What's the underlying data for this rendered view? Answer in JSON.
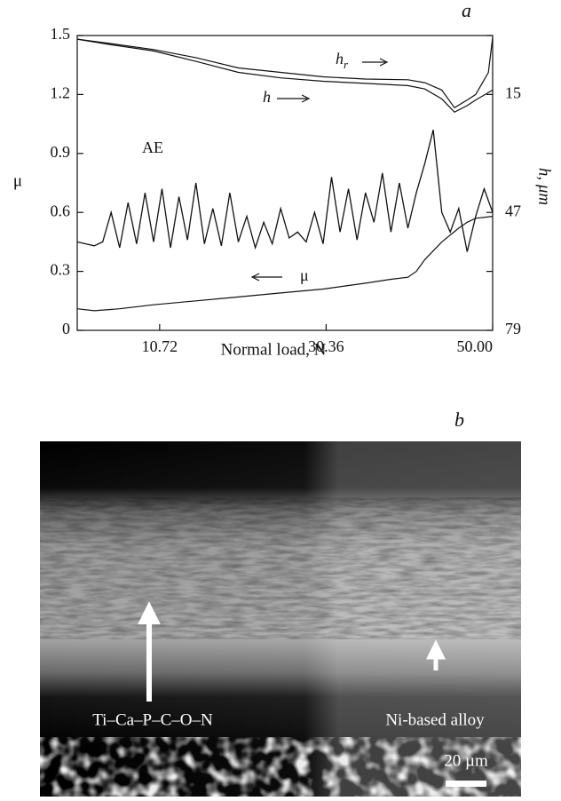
{
  "chart_data": {
    "type": "line",
    "panel_label": "a",
    "xlabel": "Normal load, N",
    "ylabel": "μ",
    "y2label": "h, μm",
    "xlim": [
      1,
      50
    ],
    "xticks": [
      10.72,
      30.36,
      {
        "value": 50,
        "label": "50.00"
      }
    ],
    "ylim": [
      0,
      1.5
    ],
    "yticks": [
      0,
      0.3,
      0.6,
      0.9,
      1.2,
      1.5
    ],
    "y2lim": [
      79,
      -1
    ],
    "y2ticks": [
      15,
      47,
      79
    ],
    "color": "#111111",
    "series": [
      {
        "name": "μ",
        "axis": "y",
        "x": [
          1,
          3,
          6,
          10,
          15,
          20,
          25,
          30,
          35,
          38,
          40,
          41,
          42,
          44,
          46,
          47,
          48,
          50
        ],
        "values": [
          0.11,
          0.1,
          0.11,
          0.13,
          0.15,
          0.17,
          0.19,
          0.21,
          0.24,
          0.26,
          0.27,
          0.3,
          0.36,
          0.45,
          0.52,
          0.55,
          0.57,
          0.58
        ]
      },
      {
        "name": "h",
        "axis": "y2",
        "x": [
          1,
          5,
          10,
          15,
          20,
          25,
          30,
          35,
          40,
          42,
          44,
          45.5,
          47,
          48,
          50
        ],
        "values": [
          0,
          1.5,
          3.2,
          6,
          9,
          10.5,
          11.4,
          12,
          12.6,
          13.5,
          16.2,
          19.8,
          18,
          16.5,
          13.8
        ]
      },
      {
        "name": "h",
        "name_sub": "r",
        "axis": "y2",
        "x": [
          1,
          5,
          10,
          15,
          20,
          25,
          30,
          35,
          40,
          42,
          44,
          45.5,
          47,
          48,
          49.5,
          50
        ],
        "values": [
          0,
          1.2,
          2.8,
          5,
          7.8,
          9,
          10.2,
          10.8,
          11,
          11.8,
          13.8,
          18.6,
          16.5,
          15,
          9,
          -0.5
        ]
      },
      {
        "name": "AE",
        "axis": "y",
        "x": [
          1,
          2,
          3,
          4,
          5,
          6,
          7,
          8,
          9,
          10,
          11,
          12,
          13,
          14,
          15,
          16,
          17,
          18,
          19,
          20,
          21,
          22,
          23,
          24,
          25,
          26,
          27,
          28,
          29,
          30,
          31,
          32,
          33,
          34,
          35,
          36,
          37,
          38,
          39,
          40,
          41,
          42,
          43,
          44,
          45,
          46,
          47,
          48,
          49,
          50
        ],
        "values": [
          0.45,
          0.44,
          0.43,
          0.45,
          0.6,
          0.42,
          0.65,
          0.44,
          0.7,
          0.45,
          0.72,
          0.42,
          0.68,
          0.46,
          0.75,
          0.44,
          0.62,
          0.43,
          0.7,
          0.45,
          0.58,
          0.42,
          0.55,
          0.44,
          0.62,
          0.47,
          0.5,
          0.45,
          0.6,
          0.44,
          0.78,
          0.5,
          0.72,
          0.46,
          0.7,
          0.55,
          0.8,
          0.5,
          0.75,
          0.52,
          0.7,
          0.85,
          1.02,
          0.6,
          0.5,
          0.62,
          0.4,
          0.58,
          0.72,
          0.6
        ]
      }
    ]
  },
  "image": {
    "panel_label": "b",
    "labels": [
      "Ti–Ca–P–C–O–N",
      "Ni-based alloy"
    ],
    "scale_bar": "20 µm"
  }
}
